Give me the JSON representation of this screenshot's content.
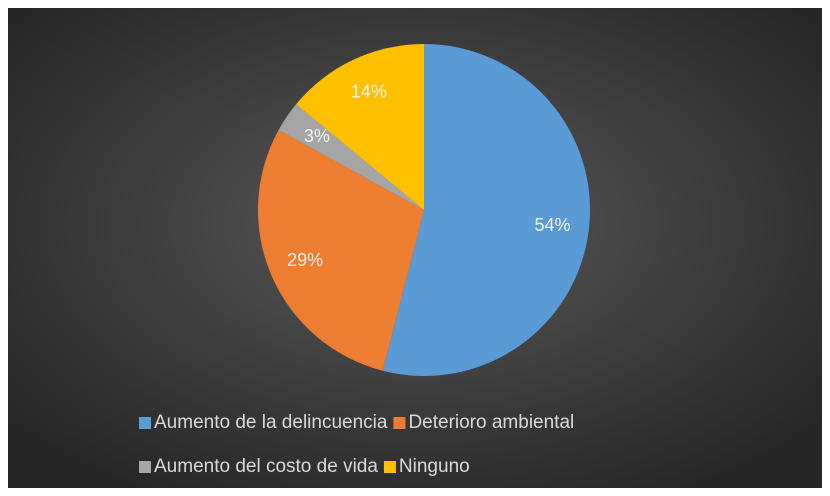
{
  "chart_data": {
    "type": "pie",
    "categories": [
      "Aumento de la delincuencia",
      "Deterioro ambiental",
      "Aumento del costo de vida",
      "Ninguno"
    ],
    "values": [
      54,
      29,
      3,
      14
    ],
    "value_labels": [
      "54%",
      "29%",
      "3%",
      "14%"
    ],
    "colors": [
      "#5B9BD5",
      "#ED7D31",
      "#A5A5A5",
      "#FFC000"
    ],
    "legend": "bottom"
  }
}
